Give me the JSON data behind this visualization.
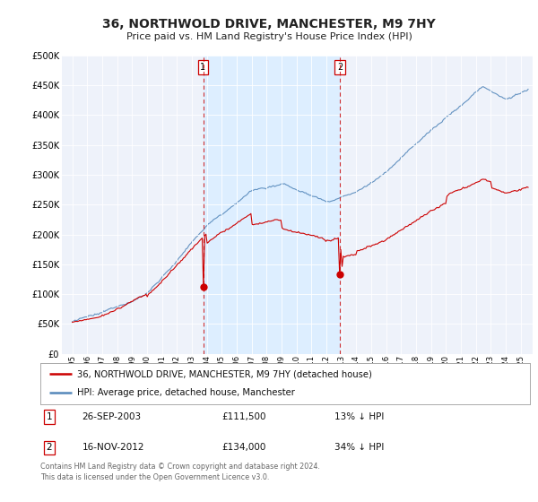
{
  "title": "36, NORTHWOLD DRIVE, MANCHESTER, M9 7HY",
  "subtitle": "Price paid vs. HM Land Registry's House Price Index (HPI)",
  "legend_line1": "36, NORTHWOLD DRIVE, MANCHESTER, M9 7HY (detached house)",
  "legend_line2": "HPI: Average price, detached house, Manchester",
  "annotation1_date": "26-SEP-2003",
  "annotation1_price": "£111,500",
  "annotation1_hpi": "13% ↓ HPI",
  "annotation2_date": "16-NOV-2012",
  "annotation2_price": "£134,000",
  "annotation2_hpi": "34% ↓ HPI",
  "footer": "Contains HM Land Registry data © Crown copyright and database right 2024.\nThis data is licensed under the Open Government Licence v3.0.",
  "red_color": "#cc0000",
  "blue_color": "#5588bb",
  "shade_color": "#ddeeff",
  "background_color": "#ffffff",
  "plot_bg_color": "#eef2fa",
  "ylim": [
    0,
    500000
  ],
  "yticks": [
    0,
    50000,
    100000,
    150000,
    200000,
    250000,
    300000,
    350000,
    400000,
    450000,
    500000
  ],
  "p1_year": 2003.75,
  "p2_year": 2012.917,
  "p1_price": 111500,
  "p2_price": 134000
}
